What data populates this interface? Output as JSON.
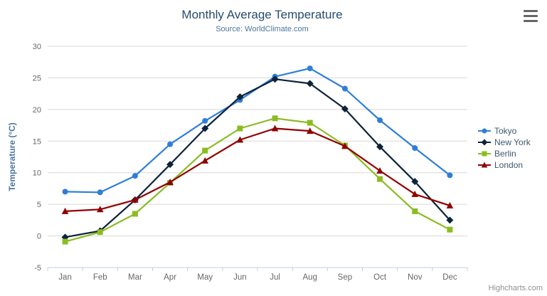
{
  "chart_data": {
    "type": "line",
    "title": "Monthly Average Temperature",
    "subtitle": "Source: WorldClimate.com",
    "xlabel": "",
    "ylabel": "Temperature (°C)",
    "categories": [
      "Jan",
      "Feb",
      "Mar",
      "Apr",
      "May",
      "Jun",
      "Jul",
      "Aug",
      "Sep",
      "Oct",
      "Nov",
      "Dec"
    ],
    "ylim": [
      -5,
      30
    ],
    "tick_interval": 5,
    "grid": true,
    "legend_position": "right",
    "series": [
      {
        "name": "Tokyo",
        "color": "#2f7ed8",
        "marker": "circle",
        "values": [
          7.0,
          6.9,
          9.5,
          14.5,
          18.2,
          21.5,
          25.2,
          26.5,
          23.3,
          18.3,
          13.9,
          9.6
        ]
      },
      {
        "name": "New York",
        "color": "#0d233a",
        "marker": "diamond",
        "values": [
          -0.2,
          0.8,
          5.7,
          11.3,
          17.0,
          22.0,
          24.8,
          24.1,
          20.1,
          14.1,
          8.6,
          2.5
        ]
      },
      {
        "name": "Berlin",
        "color": "#8bbc21",
        "marker": "square",
        "values": [
          -0.9,
          0.6,
          3.5,
          8.4,
          13.5,
          17.0,
          18.6,
          17.9,
          14.3,
          9.0,
          3.9,
          1.0
        ]
      },
      {
        "name": "London",
        "color": "#910000",
        "marker": "triangle",
        "values": [
          3.9,
          4.2,
          5.7,
          8.5,
          11.9,
          15.2,
          17.0,
          16.6,
          14.2,
          10.3,
          6.6,
          4.8
        ]
      }
    ]
  },
  "credits": {
    "label": "Highcharts.com"
  },
  "export_menu": {
    "icon": "hamburger-menu-icon"
  },
  "colors": {
    "title": "#274b6d",
    "subtitle": "#4d759e",
    "axis_title": "#4d759e",
    "axis_labels": "#666666",
    "grid": "#d8d8d8",
    "axis_line": "#c0d0e0",
    "legend_text": "#3e576f",
    "credits": "#909090",
    "menu_icon": "#666666",
    "background": "#ffffff"
  }
}
